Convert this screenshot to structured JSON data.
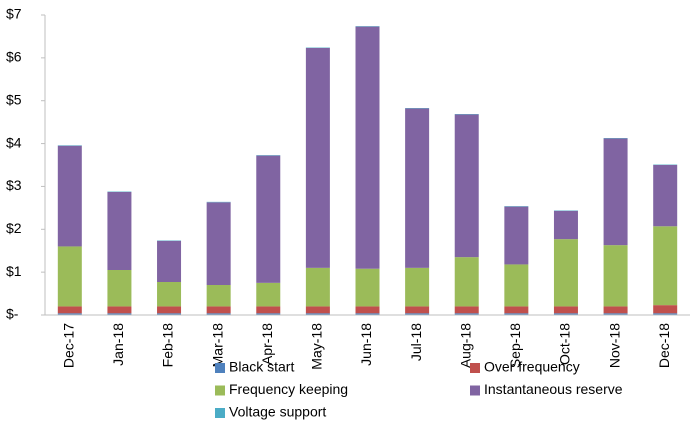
{
  "chart_data": {
    "type": "stacked_bar",
    "categories": [
      "Dec-17",
      "Jan-18",
      "Feb-18",
      "Mar-18",
      "Apr-18",
      "May-18",
      "Jun-18",
      "Jul-18",
      "Aug-18",
      "Sep-18",
      "Oct-18",
      "Nov-18",
      "Dec-18"
    ],
    "series": [
      {
        "name": "Black start",
        "color": "#4f81bd",
        "values": [
          0.04,
          0.04,
          0.04,
          0.04,
          0.04,
          0.04,
          0.04,
          0.04,
          0.04,
          0.04,
          0.04,
          0.04,
          0.04
        ]
      },
      {
        "name": "Over frequency",
        "color": "#c0504d",
        "values": [
          0.16,
          0.16,
          0.16,
          0.16,
          0.16,
          0.16,
          0.16,
          0.16,
          0.16,
          0.16,
          0.16,
          0.16,
          0.19
        ]
      },
      {
        "name": "Frequency keeping",
        "color": "#9bbb59",
        "values": [
          1.4,
          0.85,
          0.57,
          0.5,
          0.55,
          0.9,
          0.88,
          0.9,
          1.15,
          0.98,
          1.57,
          1.43,
          1.84
        ]
      },
      {
        "name": "Instantaneous reserve",
        "color": "#8064a2",
        "values": [
          2.35,
          1.82,
          0.96,
          1.93,
          2.97,
          5.13,
          5.65,
          3.72,
          3.33,
          1.35,
          0.66,
          2.49,
          1.43
        ]
      },
      {
        "name": "Voltage support",
        "color": "#4bacc6",
        "values": [
          0.01,
          0.01,
          0.01,
          0.01,
          0.01,
          0.01,
          0.01,
          0.01,
          0.01,
          0.01,
          0.01,
          0.01,
          0.01
        ]
      }
    ],
    "ylim": [
      0,
      7
    ],
    "yticks": [
      {
        "value": 0,
        "label": "$-"
      },
      {
        "value": 1,
        "label": "$1"
      },
      {
        "value": 2,
        "label": "$2"
      },
      {
        "value": 3,
        "label": "$3"
      },
      {
        "value": 4,
        "label": "$4"
      },
      {
        "value": 5,
        "label": "$5"
      },
      {
        "value": 6,
        "label": "$6"
      },
      {
        "value": 7,
        "label": "$7"
      }
    ],
    "grid": false
  }
}
